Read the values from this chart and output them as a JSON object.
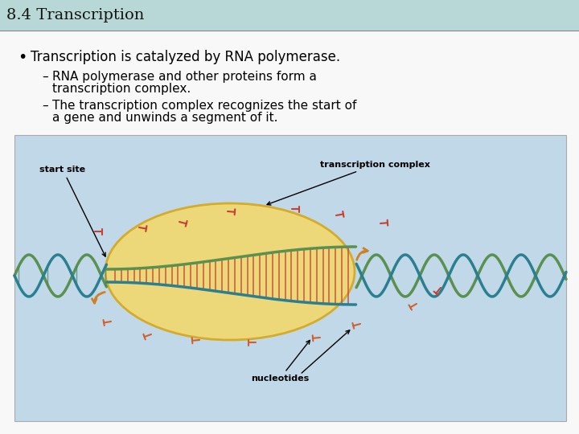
{
  "title": "8.4 Transcription",
  "title_bg": "#b8d8d8",
  "slide_bg": "#f0f0f0",
  "bullet_text": "Transcription is catalyzed by RNA polymerase.",
  "sub_bullet1_line1": "RNA polymerase and other proteins form a",
  "sub_bullet1_line2": "transcription complex.",
  "sub_bullet2_line1": "The transcription complex recognizes the start of",
  "sub_bullet2_line2": "a gene and unwinds a segment of it.",
  "diagram_bg": "#c0d8e8",
  "diagram_label1": "start site",
  "diagram_label2": "transcription complex",
  "diagram_label3": "nucleotides",
  "ellipse_color": "#f0d870",
  "ellipse_edge": "#d4a820",
  "dna_teal": "#2a8090",
  "dna_green": "#5a9050",
  "nucleotide_red": "#c84030",
  "nucleotide_orange": "#d06030",
  "arrow_orange": "#d08020",
  "font_size_title": 14,
  "font_size_bullet": 12,
  "font_size_sub": 11,
  "font_size_diagram": 8
}
